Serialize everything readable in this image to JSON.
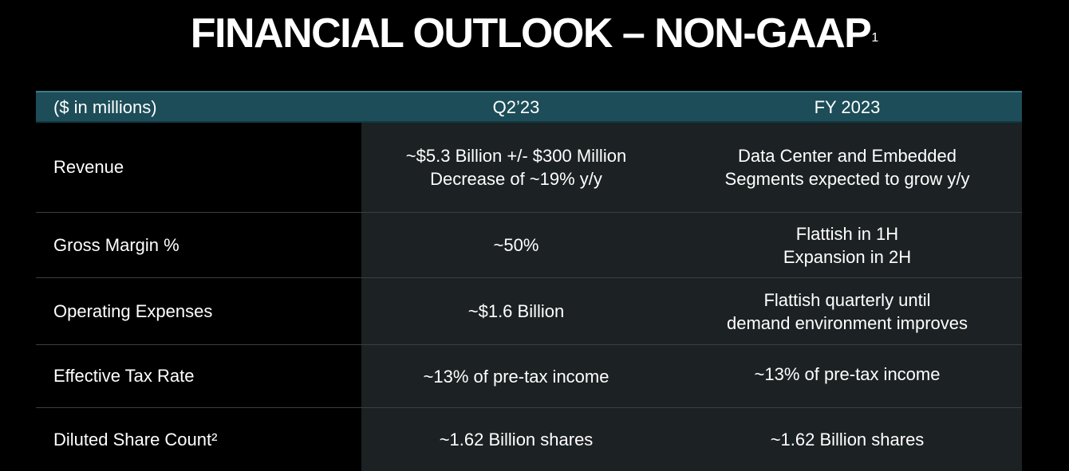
{
  "title": {
    "text": "FINANCIAL OUTLOOK – NON-GAAP",
    "footnote_marker": "1"
  },
  "table": {
    "headers": [
      "($ in millions)",
      "Q2’23",
      "FY 2023"
    ],
    "rows": [
      {
        "label": "Revenue",
        "q2": [
          "~$5.3 Billion +/- $300 Million",
          "Decrease of ~19% y/y"
        ],
        "fy": [
          "Data Center and Embedded",
          "Segments expected to grow y/y"
        ]
      },
      {
        "label": "Gross Margin %",
        "q2": [
          "~50%"
        ],
        "fy": [
          "Flattish in 1H",
          "Expansion in 2H"
        ]
      },
      {
        "label": "Operating Expenses",
        "q2": [
          "~$1.6 Billion"
        ],
        "fy": [
          "Flattish quarterly until",
          "demand environment improves"
        ]
      },
      {
        "label": "Effective Tax Rate",
        "q2": [
          "~13% of pre-tax income"
        ],
        "fy": [
          "~13% of pre-tax income"
        ]
      },
      {
        "label": "Diluted Share Count²",
        "q2": [
          "~1.62 Billion shares"
        ],
        "fy": [
          "~1.62 Billion shares"
        ]
      }
    ]
  },
  "colors": {
    "background": "#000000",
    "header_fill": "#1c4d58",
    "value_cell_fill": "#1c2123",
    "text": "#ffffff"
  }
}
